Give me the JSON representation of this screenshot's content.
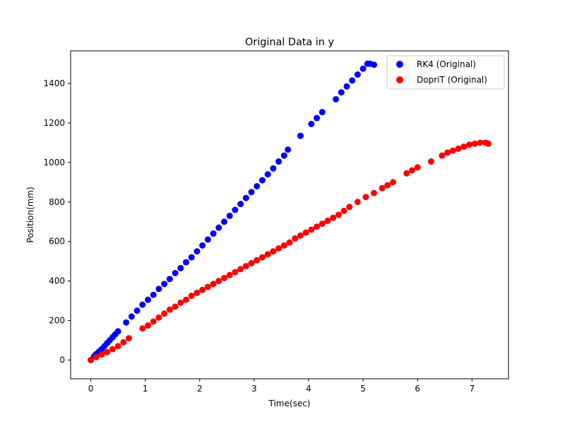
{
  "chart_data": {
    "type": "scatter",
    "title": "Original Data in y",
    "xlabel": "Time(sec)",
    "ylabel": "Position(mm)",
    "xlim": [
      -0.37,
      7.67
    ],
    "ylim": [
      -95,
      1565
    ],
    "xticks": [
      0,
      1,
      2,
      3,
      4,
      5,
      6,
      7
    ],
    "yticks": [
      0,
      200,
      400,
      600,
      800,
      1000,
      1200,
      1400
    ],
    "grid": false,
    "legend_position": "top-right",
    "series": [
      {
        "name": "RK4 (Original)",
        "color": "#0000ff",
        "points": [
          [
            0.0,
            0
          ],
          [
            0.06,
            18
          ],
          [
            0.1,
            30
          ],
          [
            0.15,
            42
          ],
          [
            0.2,
            55
          ],
          [
            0.25,
            70
          ],
          [
            0.3,
            85
          ],
          [
            0.35,
            100
          ],
          [
            0.4,
            115
          ],
          [
            0.45,
            130
          ],
          [
            0.5,
            145
          ],
          [
            0.65,
            190
          ],
          [
            0.75,
            220
          ],
          [
            0.85,
            250
          ],
          [
            0.95,
            280
          ],
          [
            1.05,
            305
          ],
          [
            1.15,
            330
          ],
          [
            1.25,
            360
          ],
          [
            1.35,
            385
          ],
          [
            1.45,
            410
          ],
          [
            1.55,
            440
          ],
          [
            1.65,
            465
          ],
          [
            1.75,
            495
          ],
          [
            1.85,
            520
          ],
          [
            1.95,
            550
          ],
          [
            2.05,
            580
          ],
          [
            2.15,
            610
          ],
          [
            2.25,
            640
          ],
          [
            2.35,
            670
          ],
          [
            2.45,
            700
          ],
          [
            2.55,
            730
          ],
          [
            2.65,
            760
          ],
          [
            2.75,
            790
          ],
          [
            2.85,
            820
          ],
          [
            2.95,
            850
          ],
          [
            3.05,
            880
          ],
          [
            3.15,
            910
          ],
          [
            3.25,
            940
          ],
          [
            3.35,
            970
          ],
          [
            3.45,
            1005
          ],
          [
            3.55,
            1035
          ],
          [
            3.62,
            1065
          ],
          [
            3.85,
            1135
          ],
          [
            4.05,
            1195
          ],
          [
            4.15,
            1225
          ],
          [
            4.25,
            1255
          ],
          [
            4.5,
            1320
          ],
          [
            4.6,
            1355
          ],
          [
            4.7,
            1385
          ],
          [
            4.8,
            1415
          ],
          [
            4.9,
            1445
          ],
          [
            5.0,
            1475
          ],
          [
            5.08,
            1500
          ],
          [
            5.13,
            1500
          ],
          [
            5.2,
            1495
          ]
        ]
      },
      {
        "name": "DopriT (Original)",
        "color": "#ff0000",
        "points": [
          [
            0.0,
            0
          ],
          [
            0.1,
            15
          ],
          [
            0.2,
            28
          ],
          [
            0.3,
            40
          ],
          [
            0.4,
            55
          ],
          [
            0.5,
            70
          ],
          [
            0.6,
            90
          ],
          [
            0.7,
            110
          ],
          [
            0.95,
            160
          ],
          [
            1.05,
            175
          ],
          [
            1.15,
            195
          ],
          [
            1.25,
            215
          ],
          [
            1.35,
            235
          ],
          [
            1.45,
            255
          ],
          [
            1.55,
            270
          ],
          [
            1.65,
            290
          ],
          [
            1.75,
            305
          ],
          [
            1.85,
            325
          ],
          [
            1.95,
            340
          ],
          [
            2.05,
            355
          ],
          [
            2.15,
            370
          ],
          [
            2.25,
            385
          ],
          [
            2.35,
            400
          ],
          [
            2.45,
            415
          ],
          [
            2.55,
            430
          ],
          [
            2.65,
            445
          ],
          [
            2.75,
            460
          ],
          [
            2.85,
            475
          ],
          [
            2.95,
            490
          ],
          [
            3.05,
            505
          ],
          [
            3.15,
            520
          ],
          [
            3.25,
            535
          ],
          [
            3.35,
            550
          ],
          [
            3.45,
            565
          ],
          [
            3.55,
            580
          ],
          [
            3.65,
            595
          ],
          [
            3.75,
            615
          ],
          [
            3.85,
            630
          ],
          [
            3.95,
            645
          ],
          [
            4.05,
            660
          ],
          [
            4.15,
            675
          ],
          [
            4.25,
            690
          ],
          [
            4.35,
            705
          ],
          [
            4.45,
            720
          ],
          [
            4.55,
            735
          ],
          [
            4.65,
            755
          ],
          [
            4.75,
            775
          ],
          [
            4.9,
            800
          ],
          [
            5.05,
            825
          ],
          [
            5.2,
            845
          ],
          [
            5.35,
            870
          ],
          [
            5.45,
            885
          ],
          [
            5.55,
            900
          ],
          [
            5.8,
            945
          ],
          [
            5.9,
            960
          ],
          [
            6.0,
            975
          ],
          [
            6.25,
            1005
          ],
          [
            6.45,
            1035
          ],
          [
            6.55,
            1050
          ],
          [
            6.65,
            1060
          ],
          [
            6.75,
            1070
          ],
          [
            6.85,
            1080
          ],
          [
            6.95,
            1090
          ],
          [
            7.05,
            1095
          ],
          [
            7.15,
            1100
          ],
          [
            7.25,
            1100
          ],
          [
            7.3,
            1095
          ]
        ]
      }
    ]
  }
}
